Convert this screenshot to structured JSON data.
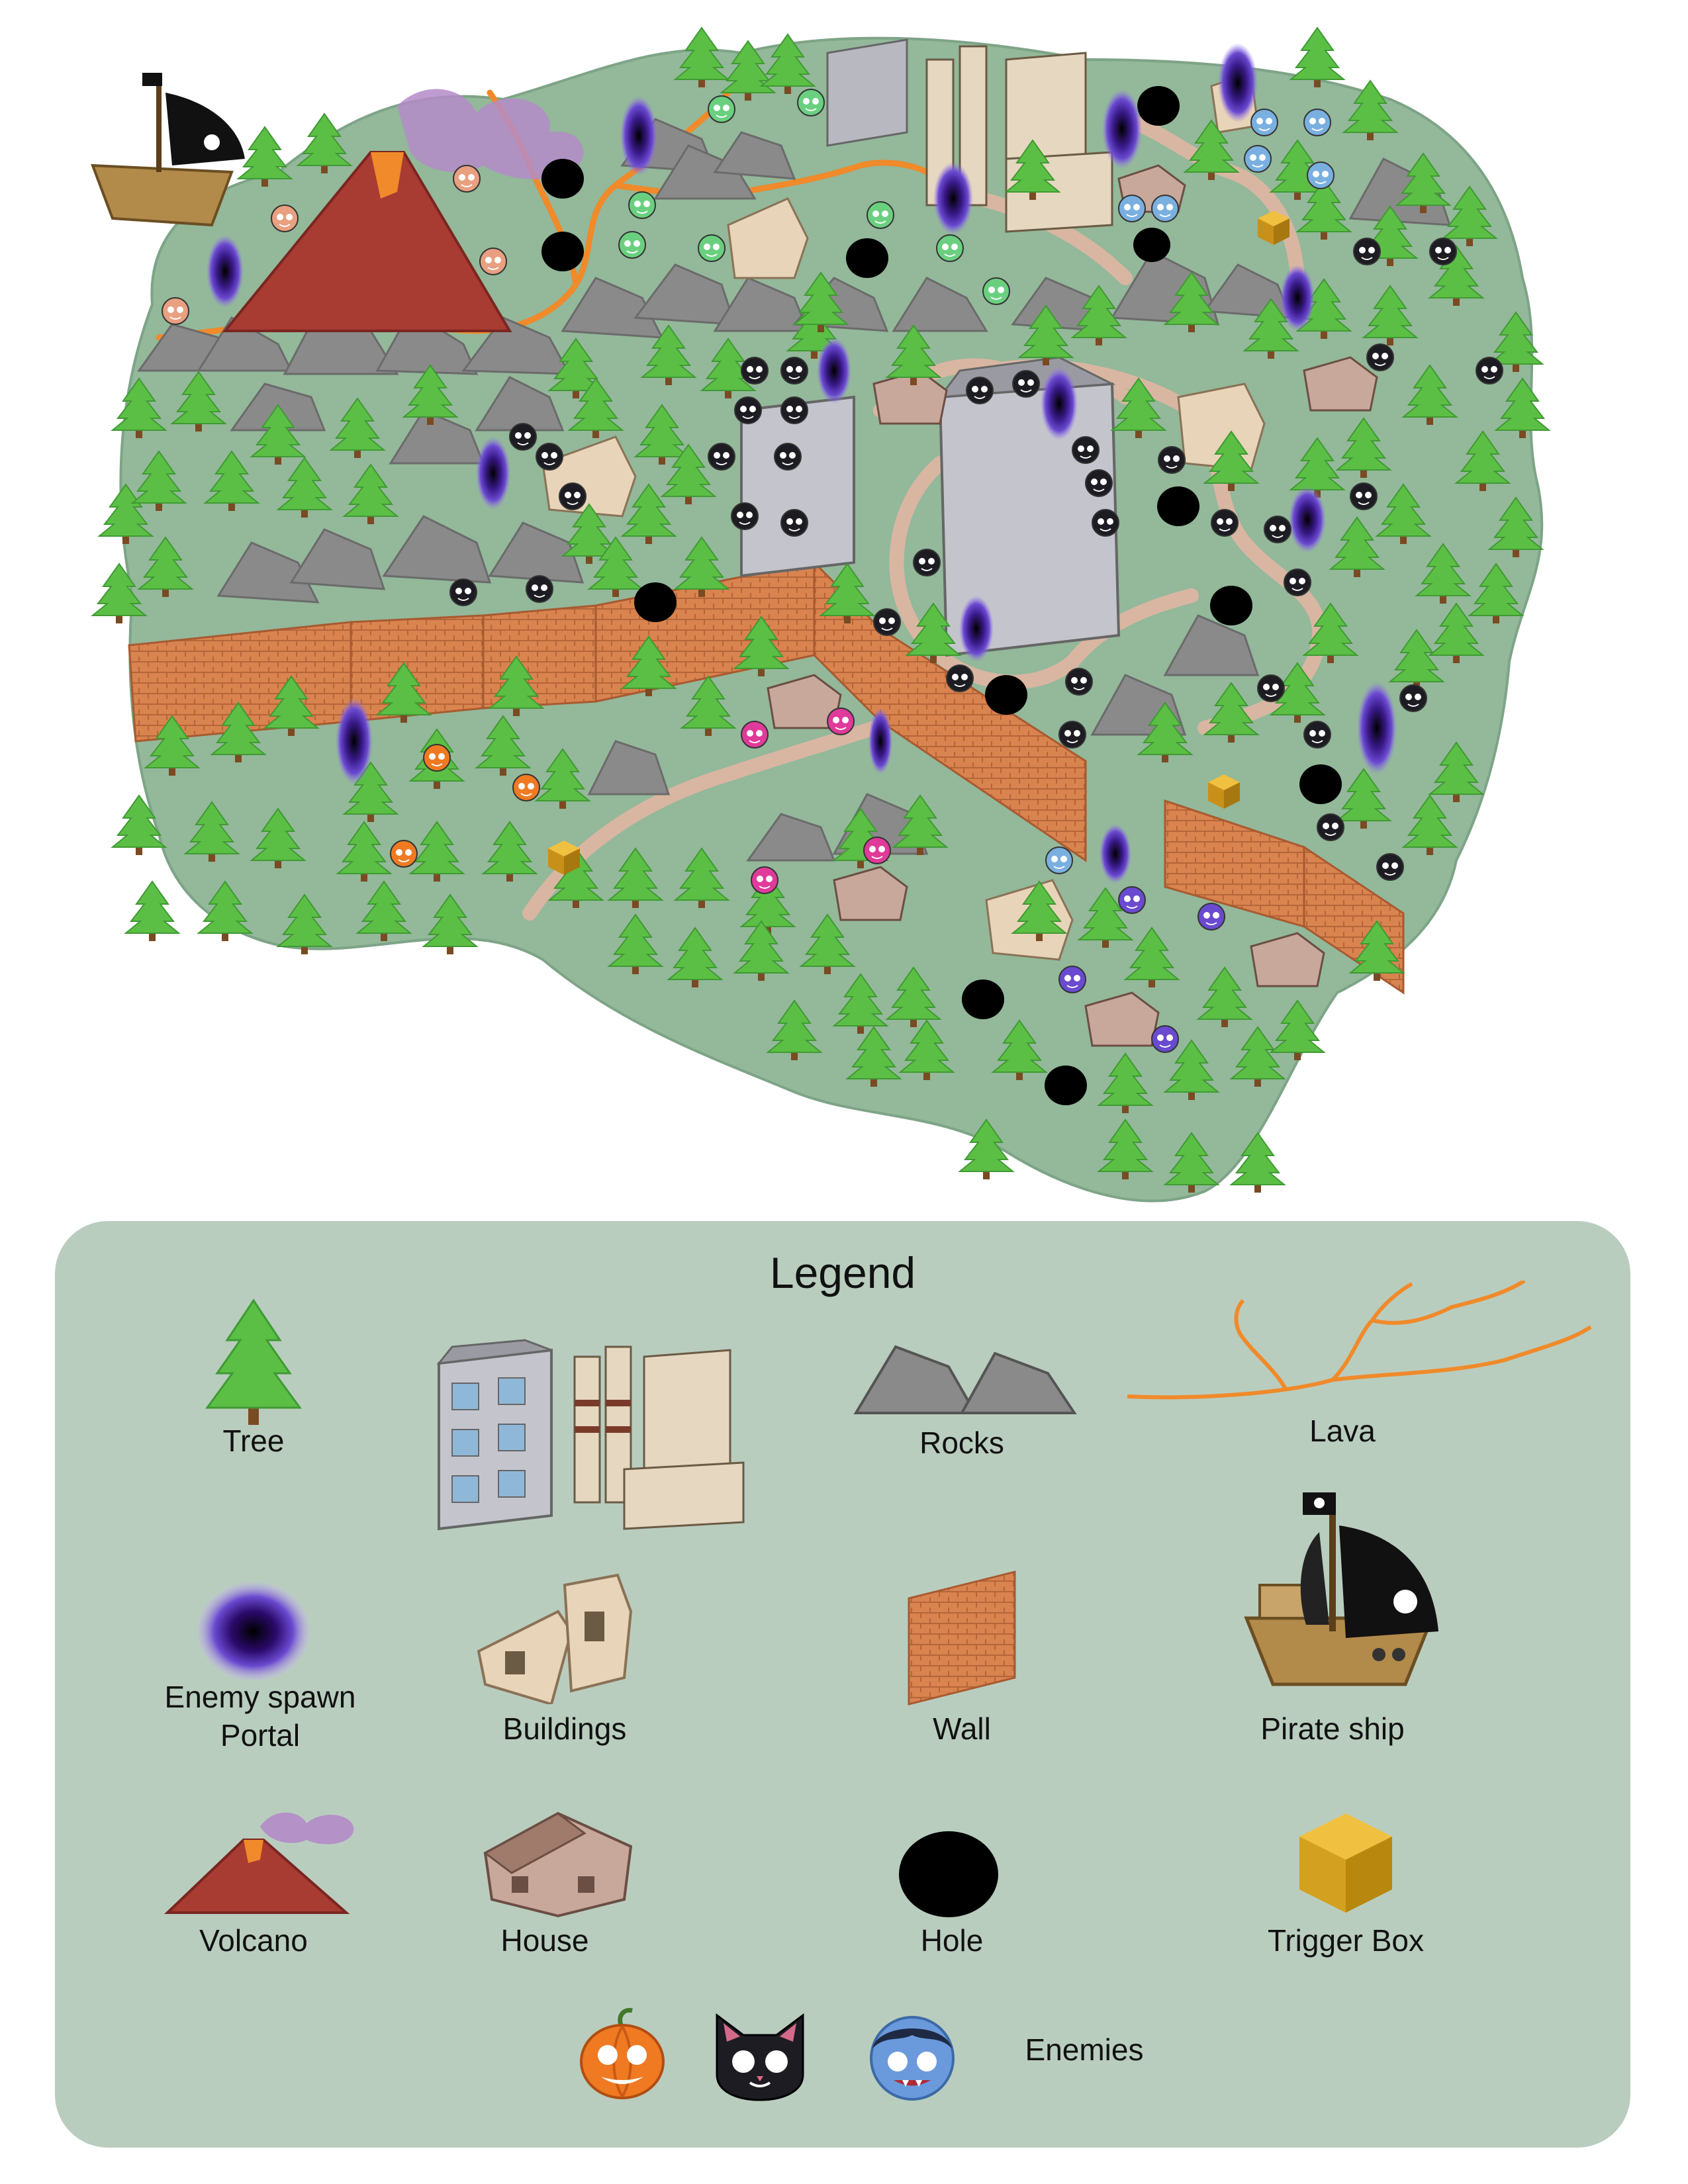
{
  "legend": {
    "title": "Legend",
    "items": {
      "tree": "Tree",
      "rocks": "Rocks",
      "lava": "Lava",
      "portal": "Enemy spawn Portal",
      "buildings": "Buildings",
      "wall": "Wall",
      "pirate_ship": "Pirate ship",
      "volcano": "Volcano",
      "house": "House",
      "hole": "Hole",
      "trigger_box": "Trigger Box",
      "enemies": "Enemies"
    },
    "enemy_icons": [
      "pumpkin-enemy-icon",
      "cat-enemy-icon",
      "vampire-enemy-icon"
    ]
  },
  "colors": {
    "ground": "#93b89a",
    "tree": "#5cbf45",
    "tree_dark": "#3f9a33",
    "rock": "#8a8a8a",
    "lava": "#f08a2a",
    "wall": "#d9834f",
    "path": "#d9b6a2",
    "portal": "#3a1a8a",
    "hole": "#000000",
    "trigger_box": "#d4a020",
    "legend_bg": "#b9cdbf"
  }
}
